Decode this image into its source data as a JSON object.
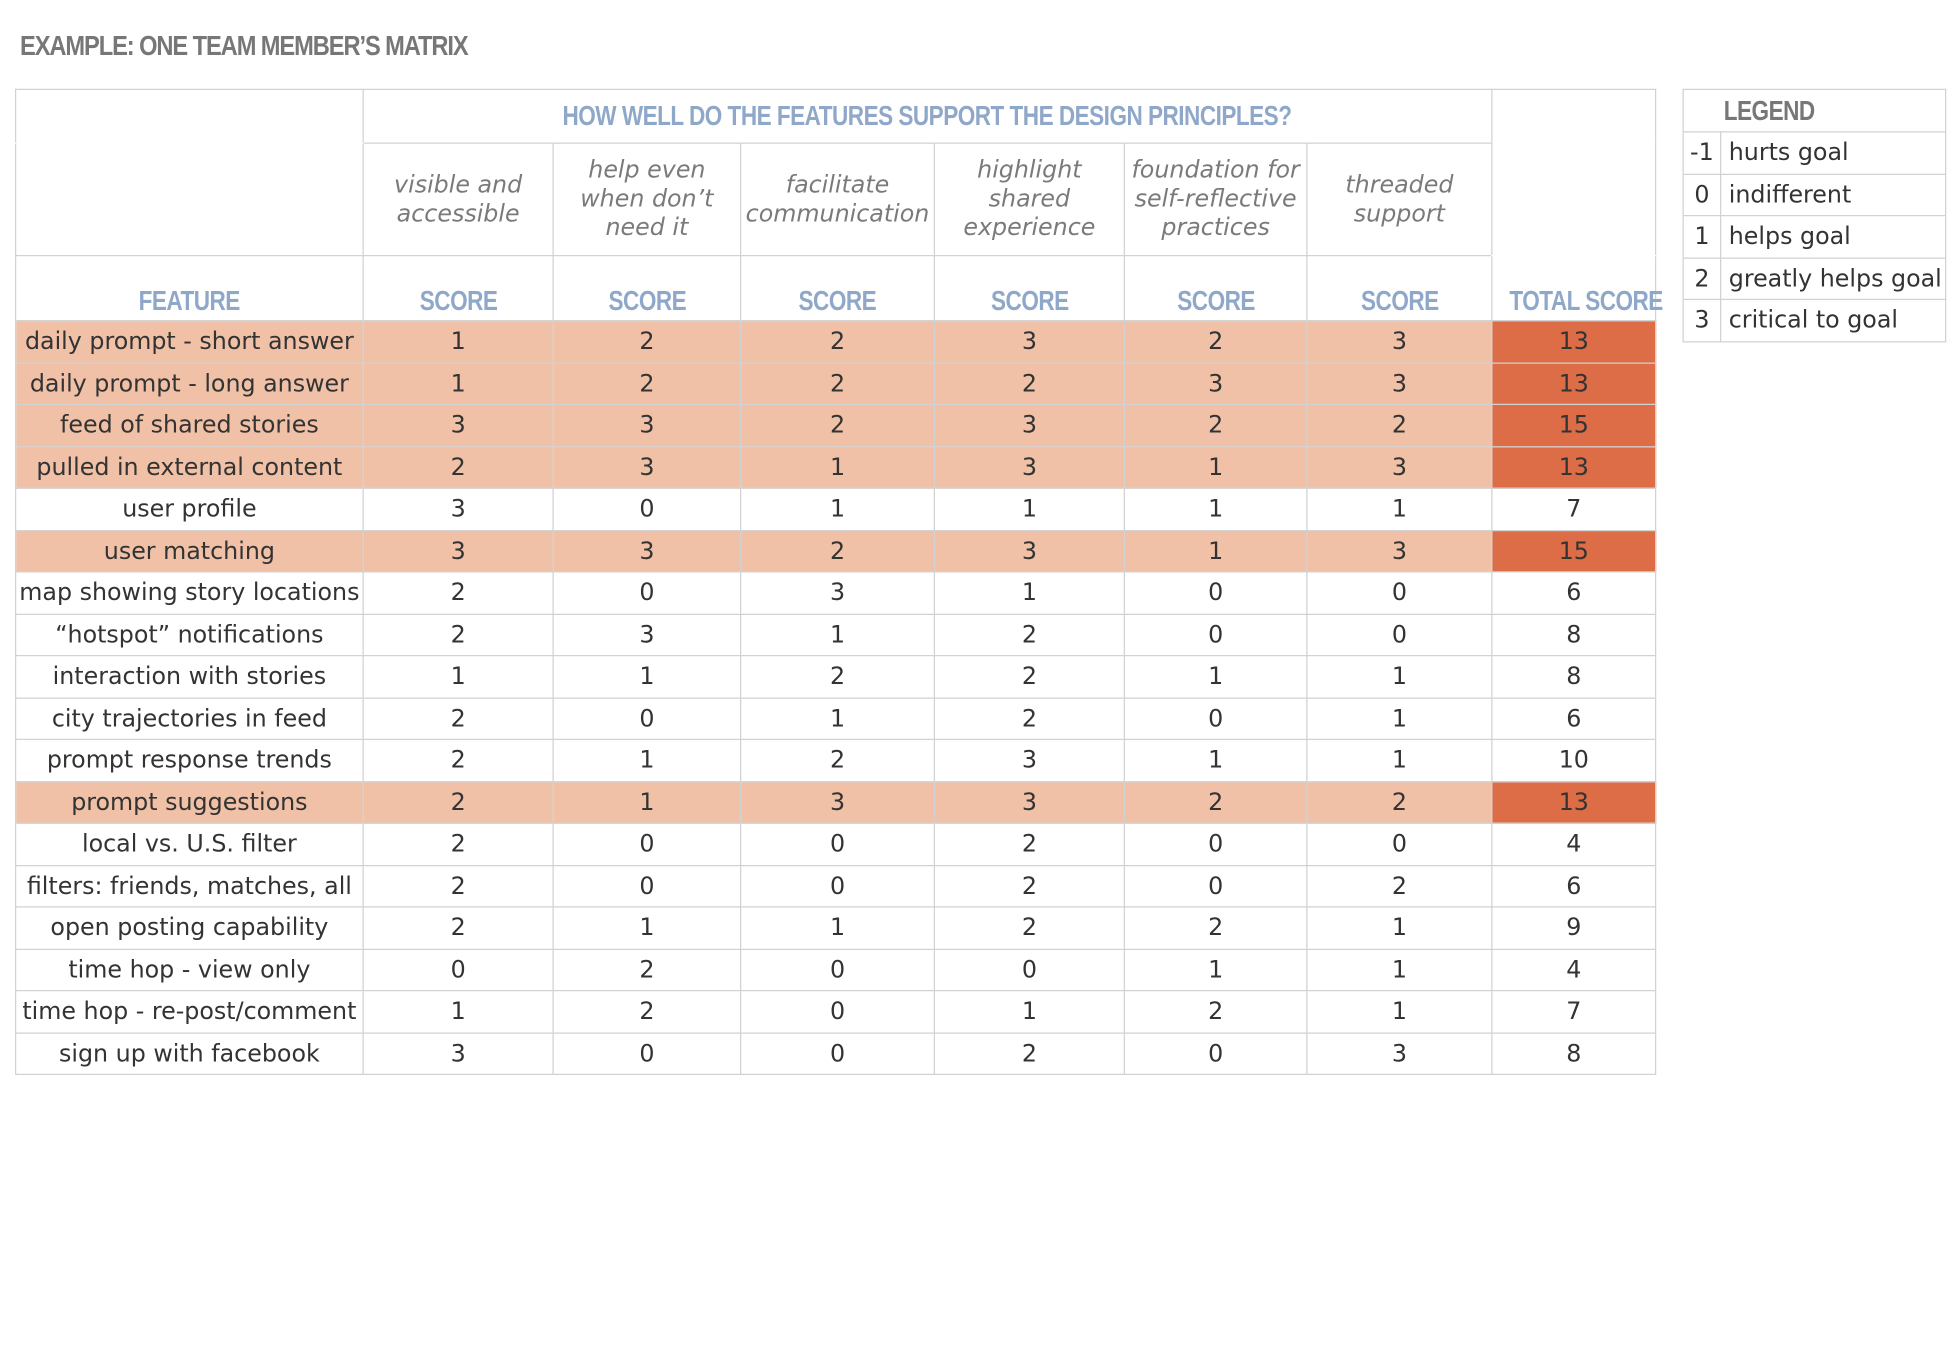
{
  "caption": "EXAMPLE: ONE TEAM MEMBER’S MATRIX",
  "matrix": {
    "question": "HOW WELL DO THE FEATURES SUPPORT THE DESIGN PRINCIPLES?",
    "feature_header": "FEATURE",
    "score_header": "SCORE",
    "total_header": "TOTAL SCORE",
    "principles": [
      "visible and accessible",
      "help even when don’t need it",
      "facilitate communication",
      "highlight shared experience",
      "foundation for self-reflective practices",
      "threaded support"
    ],
    "rows": [
      {
        "feature": "daily prompt - short answer",
        "scores": [
          "1",
          "2",
          "2",
          "3",
          "2",
          "3"
        ],
        "total": "13",
        "highlight": true
      },
      {
        "feature": "daily prompt - long answer",
        "scores": [
          "1",
          "2",
          "2",
          "2",
          "3",
          "3"
        ],
        "total": "13",
        "highlight": true
      },
      {
        "feature": "feed of shared stories",
        "scores": [
          "3",
          "3",
          "2",
          "3",
          "2",
          "2"
        ],
        "total": "15",
        "highlight": true
      },
      {
        "feature": "pulled in external content",
        "scores": [
          "2",
          "3",
          "1",
          "3",
          "1",
          "3"
        ],
        "total": "13",
        "highlight": true
      },
      {
        "feature": "user profile",
        "scores": [
          "3",
          "0",
          "1",
          "1",
          "1",
          "1"
        ],
        "total": "7",
        "highlight": false
      },
      {
        "feature": "user matching",
        "scores": [
          "3",
          "3",
          "2",
          "3",
          "1",
          "3"
        ],
        "total": "15",
        "highlight": true
      },
      {
        "feature": "map showing story locations",
        "scores": [
          "2",
          "0",
          "3",
          "1",
          "0",
          "0"
        ],
        "total": "6",
        "highlight": false
      },
      {
        "feature": "“hotspot” notifications",
        "scores": [
          "2",
          "3",
          "1",
          "2",
          "0",
          "0"
        ],
        "total": "8",
        "highlight": false
      },
      {
        "feature": "interaction with stories",
        "scores": [
          "1",
          "1",
          "2",
          "2",
          "1",
          "1"
        ],
        "total": "8",
        "highlight": false
      },
      {
        "feature": "city trajectories in feed",
        "scores": [
          "2",
          "0",
          "1",
          "2",
          "0",
          "1"
        ],
        "total": "6",
        "highlight": false
      },
      {
        "feature": "prompt response trends",
        "scores": [
          "2",
          "1",
          "2",
          "3",
          "1",
          "1"
        ],
        "total": "10",
        "highlight": false
      },
      {
        "feature": "prompt suggestions",
        "scores": [
          "2",
          "1",
          "3",
          "3",
          "2",
          "2"
        ],
        "total": "13",
        "highlight": true
      },
      {
        "feature": "local vs. U.S. filter",
        "scores": [
          "2",
          "0",
          "0",
          "2",
          "0",
          "0"
        ],
        "total": "4",
        "highlight": false
      },
      {
        "feature": "filters: friends, matches, all",
        "scores": [
          "2",
          "0",
          "0",
          "2",
          "0",
          "2"
        ],
        "total": "6",
        "highlight": false
      },
      {
        "feature": "open posting capability",
        "scores": [
          "2",
          "1",
          "1",
          "2",
          "2",
          "1"
        ],
        "total": "9",
        "highlight": false
      },
      {
        "feature": "time hop - view only",
        "scores": [
          "0",
          "2",
          "0",
          "0",
          "1",
          "1"
        ],
        "total": "4",
        "highlight": false
      },
      {
        "feature": "time hop - re-post/comment",
        "scores": [
          "1",
          "2",
          "0",
          "1",
          "2",
          "1"
        ],
        "total": "7",
        "highlight": false
      },
      {
        "feature": "sign up with facebook",
        "scores": [
          "3",
          "0",
          "0",
          "2",
          "0",
          "3"
        ],
        "total": "8",
        "highlight": false
      }
    ]
  },
  "legend": {
    "title": "LEGEND",
    "items": [
      {
        "value": "-1",
        "label": "hurts goal"
      },
      {
        "value": "0",
        "label": "indifferent"
      },
      {
        "value": "1",
        "label": "helps goal"
      },
      {
        "value": "2",
        "label": "greatly helps goal"
      },
      {
        "value": "3",
        "label": "critical to goal"
      }
    ]
  },
  "colors": {
    "highlight_row": "#f0c1a6",
    "highlight_total": "#dd6d46",
    "header_blue": "#8fa8c9"
  }
}
